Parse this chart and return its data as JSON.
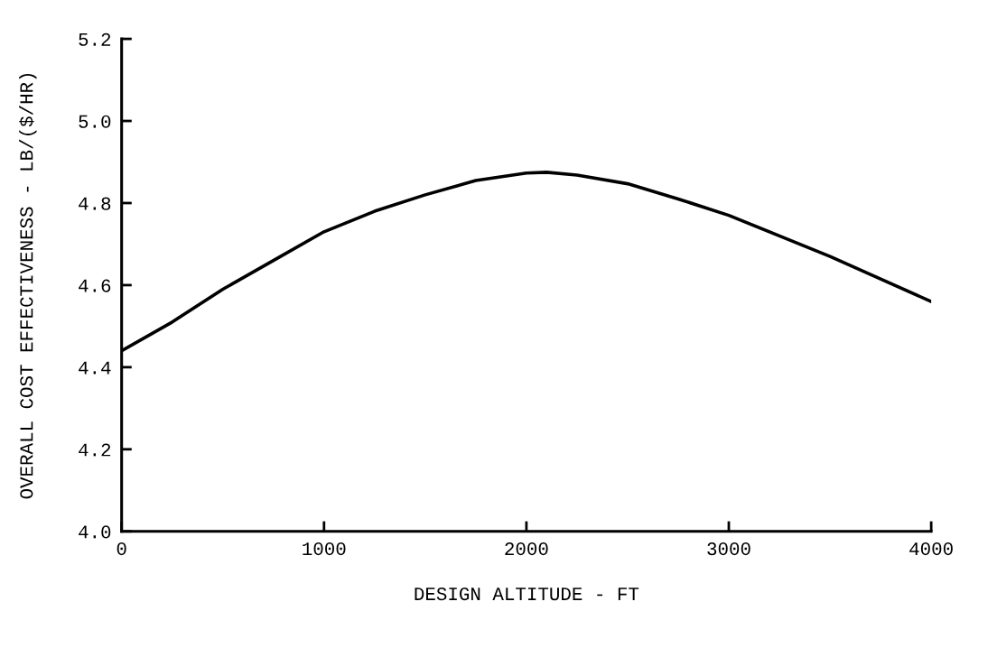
{
  "chart_data": {
    "type": "line",
    "xlabel": "DESIGN ALTITUDE - FT",
    "ylabel": "OVERALL COST EFFECTIVENESS - LB/($/HR)",
    "series": [
      {
        "color": "#000000",
        "x": [
          0,
          250,
          500,
          750,
          1000,
          1250,
          1500,
          1750,
          2000,
          2100,
          2250,
          2500,
          2750,
          3000,
          3250,
          3500,
          3750,
          4000
        ],
        "values": [
          4.44,
          4.51,
          4.59,
          4.66,
          4.73,
          4.78,
          4.82,
          4.855,
          4.873,
          4.875,
          4.868,
          4.847,
          4.81,
          4.77,
          4.72,
          4.67,
          4.615,
          4.56
        ]
      }
    ],
    "xlim": [
      0,
      4000
    ],
    "xticks": [
      0,
      1000,
      2000,
      3000,
      4000
    ],
    "ylim": [
      4.0,
      5.2
    ],
    "yticks": [
      {
        "value": 4.0,
        "label": "4.0"
      },
      {
        "value": 4.2,
        "label": "4.2"
      },
      {
        "value": 4.4,
        "label": "4.4"
      },
      {
        "value": 4.6,
        "label": "4.6"
      },
      {
        "value": 4.8,
        "label": "4.8"
      },
      {
        "value": 5.0,
        "label": "5.0"
      },
      {
        "value": 5.2,
        "label": "5.2"
      }
    ],
    "grid": false,
    "marker": "none",
    "line_style": "solid"
  }
}
